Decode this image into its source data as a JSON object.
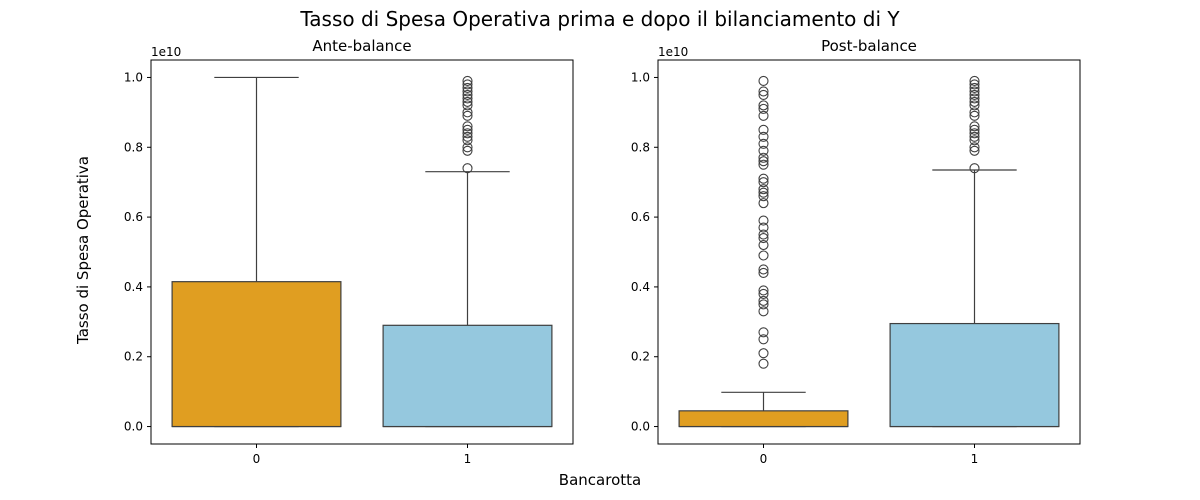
{
  "figure": {
    "suptitle": "Tasso di Spesa Operativa prima e dopo il bilanciamento di Y",
    "ylabel": "Tasso di Spesa Operativa",
    "xlabel": "Bancarotta",
    "offset_label": "1e10"
  },
  "colors": {
    "class_0": "#e09e21",
    "class_1": "#95c8de",
    "line": "#3f3f3f"
  },
  "chart_data": [
    {
      "type": "box",
      "title": "Ante-balance",
      "ylim": [
        -0.05,
        1.05
      ],
      "yticks": [
        0.0,
        0.2,
        0.4,
        0.6,
        0.8,
        1.0
      ],
      "ytick_labels": [
        "0.0",
        "0.2",
        "0.4",
        "0.6",
        "0.8",
        "1.0"
      ],
      "categories": [
        "0",
        "1"
      ],
      "boxes": [
        {
          "category": "0",
          "whisker_low": 0.0,
          "q1": 0.0,
          "median": 0.0,
          "q3": 0.415,
          "whisker_high": 1.0,
          "fliers": []
        },
        {
          "category": "1",
          "whisker_low": 0.0,
          "q1": 0.0,
          "median": 0.0,
          "q3": 0.29,
          "whisker_high": 0.73,
          "fliers": [
            0.74,
            0.79,
            0.8,
            0.82,
            0.83,
            0.84,
            0.85,
            0.86,
            0.89,
            0.9,
            0.92,
            0.93,
            0.94,
            0.95,
            0.96,
            0.97,
            0.98,
            0.99
          ]
        }
      ]
    },
    {
      "type": "box",
      "title": "Post-balance",
      "ylim": [
        -0.05,
        1.05
      ],
      "yticks": [
        0.0,
        0.2,
        0.4,
        0.6,
        0.8,
        1.0
      ],
      "ytick_labels": [
        "0.0",
        "0.2",
        "0.4",
        "0.6",
        "0.8",
        "1.0"
      ],
      "categories": [
        "0",
        "1"
      ],
      "boxes": [
        {
          "category": "0",
          "whisker_low": 0.0,
          "q1": 0.0,
          "median": 0.0,
          "q3": 0.045,
          "whisker_high": 0.098,
          "fliers": [
            0.18,
            0.21,
            0.25,
            0.27,
            0.33,
            0.35,
            0.36,
            0.38,
            0.39,
            0.44,
            0.45,
            0.49,
            0.52,
            0.54,
            0.55,
            0.57,
            0.59,
            0.64,
            0.66,
            0.67,
            0.68,
            0.7,
            0.71,
            0.75,
            0.76,
            0.77,
            0.79,
            0.81,
            0.83,
            0.85,
            0.89,
            0.91,
            0.92,
            0.95,
            0.96,
            0.99
          ]
        },
        {
          "category": "1",
          "whisker_low": 0.0,
          "q1": 0.0,
          "median": 0.0,
          "q3": 0.295,
          "whisker_high": 0.735,
          "fliers": [
            0.74,
            0.79,
            0.8,
            0.82,
            0.83,
            0.84,
            0.85,
            0.86,
            0.89,
            0.9,
            0.92,
            0.93,
            0.94,
            0.95,
            0.96,
            0.97,
            0.98,
            0.99
          ]
        }
      ]
    }
  ]
}
